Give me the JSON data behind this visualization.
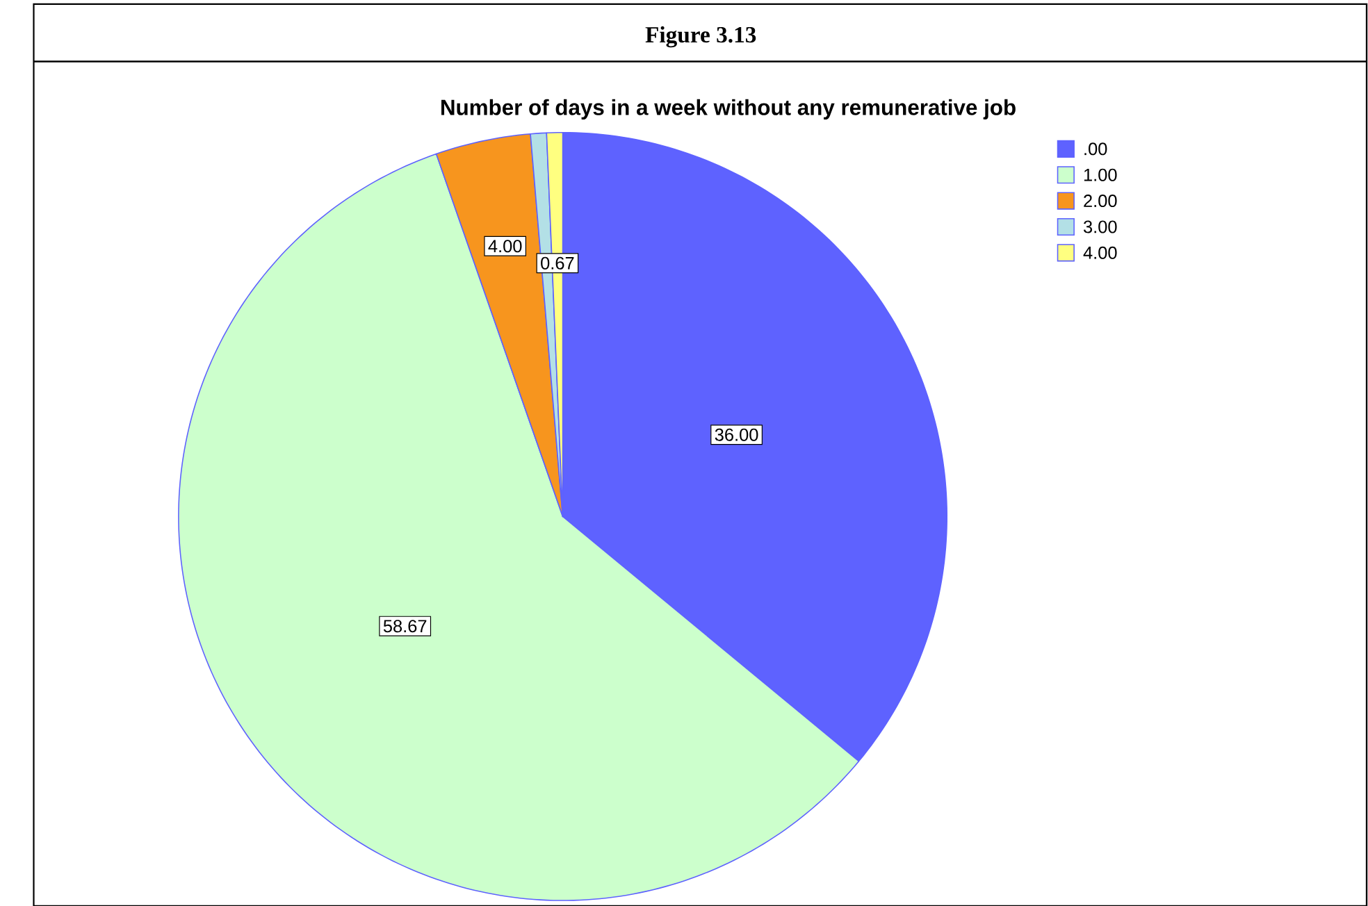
{
  "chart_data": {
    "type": "pie",
    "title": "Number of days in a week without any remunerative job",
    "annotations": [
      "Figure 3.13"
    ],
    "categories": [
      ".00",
      "1.00",
      "2.00",
      "3.00",
      "4.00"
    ],
    "values": [
      36.0,
      58.67,
      4.0,
      0.67,
      0.67
    ],
    "colors": [
      "#5e62ff",
      "#ccffcc",
      "#f7951e",
      "#b3e0e6",
      "#ffff80"
    ],
    "value_labels": [
      "36.00",
      "58.67",
      "4.00",
      null,
      "0.67"
    ],
    "legend": "top right"
  }
}
